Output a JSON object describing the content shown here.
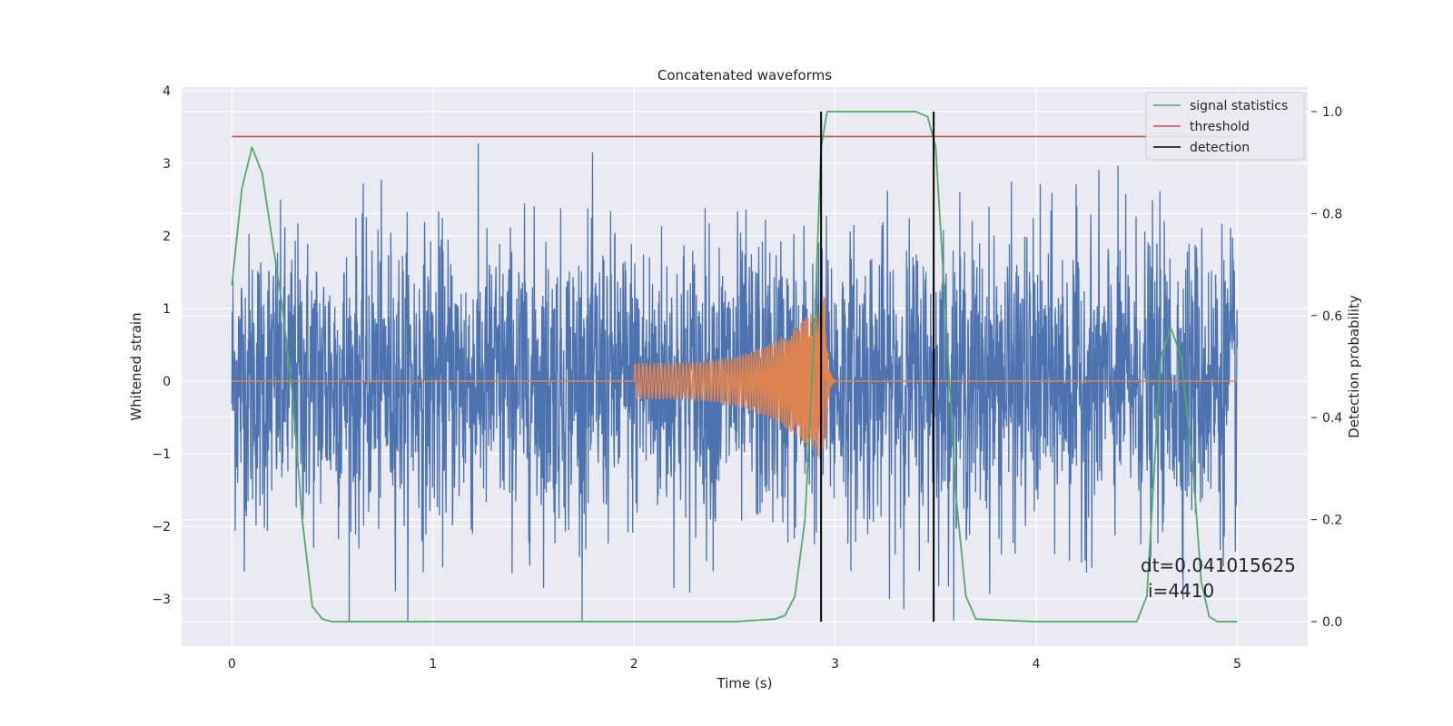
{
  "chart_data": {
    "type": "line",
    "title": "Concatenated waveforms",
    "xlabel": "Time (s)",
    "ylabel": "Whitened strain",
    "y2label": "Detection probability",
    "xlim": [
      -0.25,
      5.35
    ],
    "ylim": [
      -3.65,
      4.05
    ],
    "y2lim": [
      -0.048,
      1.048
    ],
    "x_ticks": [
      "0",
      "1",
      "2",
      "3",
      "4",
      "5"
    ],
    "y_ticks": [
      "−3",
      "−2",
      "−1",
      "0",
      "1",
      "2",
      "3",
      "4"
    ],
    "y2_ticks": [
      "0.0",
      "0.2",
      "0.4",
      "0.6",
      "0.8",
      "1.0"
    ],
    "grid": true,
    "legend_position": "top-right",
    "colors": {
      "strain": "#4c72b0",
      "injected": "#dd8452",
      "signal_statistics": "#55a868",
      "threshold": "#c44e52",
      "detection": "#000000",
      "background": "#eaeaf2",
      "grid": "#ffffff"
    },
    "series": [
      {
        "name": "",
        "axis": "left",
        "description_key": "strain",
        "x_range": [
          0,
          5
        ],
        "amplitude_envelope": 3.3
      },
      {
        "name": "",
        "axis": "left",
        "description_key": "injected",
        "chirp_start": 2.0,
        "merger": 2.95,
        "x_range": [
          0,
          5
        ]
      },
      {
        "name": "signal statistics",
        "axis": "right",
        "x": [
          0.0,
          0.05,
          0.1,
          0.15,
          0.2,
          0.25,
          0.3,
          0.35,
          0.4,
          0.45,
          0.5,
          1.0,
          2.0,
          2.5,
          2.7,
          2.75,
          2.8,
          2.85,
          2.9,
          2.93,
          2.96,
          3.0,
          3.4,
          3.46,
          3.5,
          3.55,
          3.6,
          3.65,
          3.7,
          4.0,
          4.5,
          4.55,
          4.58,
          4.62,
          4.67,
          4.72,
          4.78,
          4.82,
          4.86,
          4.9,
          5.0
        ],
        "values": [
          0.66,
          0.85,
          0.93,
          0.88,
          0.75,
          0.62,
          0.45,
          0.2,
          0.03,
          0.005,
          0.0,
          0.0,
          0.0,
          0.0,
          0.005,
          0.012,
          0.05,
          0.2,
          0.6,
          0.93,
          1.0,
          1.0,
          1.0,
          0.99,
          0.93,
          0.6,
          0.25,
          0.05,
          0.005,
          0.0,
          0.0,
          0.05,
          0.25,
          0.52,
          0.575,
          0.52,
          0.3,
          0.08,
          0.01,
          0.0,
          0.0
        ]
      },
      {
        "name": "threshold",
        "axis": "left",
        "x": [
          0,
          5
        ],
        "values": [
          3.37,
          3.37
        ]
      },
      {
        "name": "detection",
        "axis": "right",
        "vertical_lines": [
          2.93,
          3.49
        ],
        "y_range": [
          0,
          1.0
        ]
      }
    ],
    "annotations": [
      "dt=0.041015625",
      "i=4410"
    ]
  }
}
